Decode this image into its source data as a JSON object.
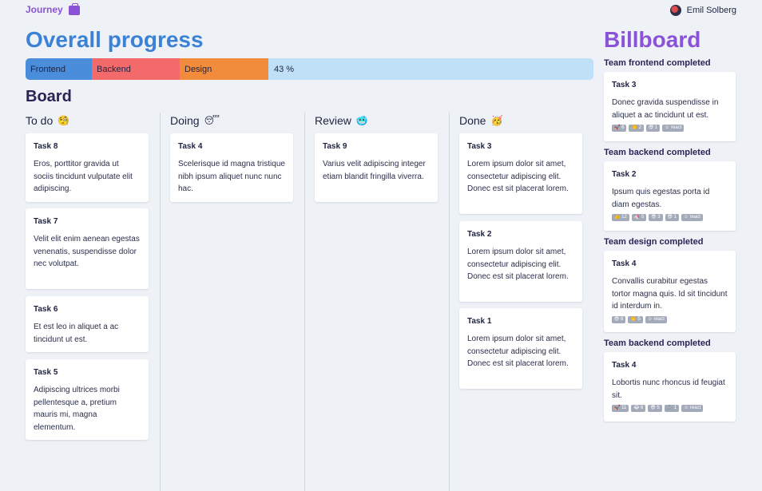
{
  "header": {
    "brand": "Journey",
    "user_name": "Emil Solberg"
  },
  "progress": {
    "title": "Overall progress",
    "segments": [
      {
        "label": "Frontend",
        "color": "#4a8ddb"
      },
      {
        "label": "Backend",
        "color": "#f46a6a"
      },
      {
        "label": "Design",
        "color": "#f08c3c"
      }
    ],
    "percent": "43 %"
  },
  "board": {
    "title": "Board",
    "columns": [
      {
        "title": "To do",
        "emoji": "🧐",
        "cards": [
          {
            "title": "Task 8",
            "desc": "Eros, porttitor gravida ut sociis tincidunt vulputate elit adipiscing."
          },
          {
            "title": "Task 7",
            "desc": "Velit elit enim aenean egestas venenatis, suspendisse dolor nec volutpat."
          },
          {
            "title": "Task 6",
            "desc": "Et est leo in aliquet a ac tincidunt ut est."
          },
          {
            "title": "Task 5",
            "desc": "Adipiscing ultrices morbi pellentesque a, pretium mauris mi, magna elementum."
          }
        ]
      },
      {
        "title": "Doing",
        "emoji": "😴",
        "cards": [
          {
            "title": "Task 4",
            "desc": "Scelerisque id magna tristique nibh ipsum aliquet nunc nunc hac."
          }
        ]
      },
      {
        "title": "Review",
        "emoji": "🥶",
        "cards": [
          {
            "title": "Task 9",
            "desc": "Varius velit adipiscing integer etiam blandit fringilla viverra."
          }
        ]
      },
      {
        "title": "Done",
        "emoji": "🥳",
        "cards": [
          {
            "title": "Task 3",
            "desc": "Lorem ipsum dolor sit amet, consectetur adipiscing elit. Donec est sit placerat lorem."
          },
          {
            "title": "Task 2",
            "desc": "Lorem ipsum dolor sit amet, consectetur adipiscing elit. Donec est sit placerat lorem."
          },
          {
            "title": "Task 1",
            "desc": "Lorem ipsum dolor sit amet, consectetur adipiscing elit. Donec est sit placerat lorem."
          }
        ]
      }
    ]
  },
  "billboard": {
    "title": "Billboard",
    "entries": [
      {
        "section": "Team frontend completed",
        "title": "Task 3",
        "desc": "Donec gravida suspendisse in aliquet a ac tincidunt ut est.",
        "reactions": [
          "🚀 6",
          "👏 2",
          "😎 1",
          "☺ react"
        ]
      },
      {
        "section": "Team backend completed",
        "title": "Task 2",
        "desc": "Ipsum quis egestas porta id diam egestas.",
        "reactions": [
          "👍 12",
          "🦄 5",
          "😎 3",
          "😎 1",
          "☺ react"
        ]
      },
      {
        "section": "Team design completed",
        "title": "Task 4",
        "desc": "Convallis curabitur egestas tortor magna quis. Id sit tincidunt id interdum in.",
        "reactions": [
          "😎 8",
          "👏 5",
          "☺ react"
        ]
      },
      {
        "section": "Team backend completed",
        "title": "Task 4",
        "desc": "Lobortis nunc rhoncus id feugiat sit.",
        "reactions": [
          "🚀 11",
          "😂 6",
          "😎 5",
          "🦾 1",
          "☺ react"
        ]
      }
    ]
  }
}
